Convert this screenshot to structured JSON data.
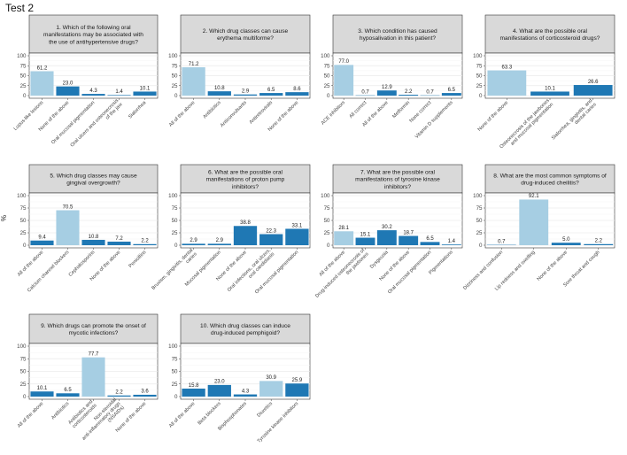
{
  "page": {
    "title": "Test 2",
    "y_axis_label": "%"
  },
  "colors": {
    "light_bar": "#a6cee3",
    "dark_bar": "#1f78b4",
    "strip_bg": "#d9d9d9",
    "panel_border": "#333333",
    "grid": "#ebebeb"
  },
  "chart_data": [
    {
      "type": "bar",
      "title": "1. Which of the following oral manifestations may be associated with the use of antihypertensive drugs?",
      "title_lines": [
        "1. Which of the following oral",
        "manifestations may be associated with",
        "the use of antihypertensive drugs?"
      ],
      "categories": [
        "Lupus-like lesions",
        "None of the above",
        "Oral mucosal pigmentation",
        "Oral ulcers and osteonecrosis of the jaw",
        "Sialorrhea"
      ],
      "category_lines": [
        [
          "Lupus-like lesions"
        ],
        [
          "None of the above"
        ],
        [
          "Oral mucosal pigmentation"
        ],
        [
          "Oral ulcers and osteonecrosis",
          "of the jaw"
        ],
        [
          "Sialorrhea"
        ]
      ],
      "values": [
        61.2,
        23.0,
        4.3,
        1.4,
        10.1
      ],
      "value_labels": [
        "61.2",
        "23.0",
        "4.3",
        "1.4",
        "10.1"
      ],
      "correct": [
        true,
        false,
        false,
        false,
        false
      ],
      "ylim": [
        0,
        100
      ],
      "yticks": [
        "0",
        "25",
        "50",
        "75",
        "100"
      ]
    },
    {
      "type": "bar",
      "title": "2. Which drug classes can cause erythema multiforme?",
      "title_lines": [
        "2. Which drug classes can cause",
        "erythema multiforme?"
      ],
      "categories": [
        "All of the above",
        "Antibiotics",
        "Anticonvulsants",
        "Antiretrovirals",
        "None of the above"
      ],
      "category_lines": [
        [
          "All of the above"
        ],
        [
          "Antibiotics"
        ],
        [
          "Anticonvulsants"
        ],
        [
          "Antiretrovirals"
        ],
        [
          "None of the above"
        ]
      ],
      "values": [
        71.2,
        10.8,
        2.9,
        6.5,
        8.6
      ],
      "value_labels": [
        "71.2",
        "10.8",
        "2.9",
        "6.5",
        "8.6"
      ],
      "correct": [
        true,
        false,
        false,
        false,
        false
      ],
      "ylim": [
        0,
        100
      ],
      "yticks": [
        "0",
        "25",
        "50",
        "75",
        "100"
      ]
    },
    {
      "type": "bar",
      "title": "3. Which condition has caused hyposalivation in this patient?",
      "title_lines": [
        "3. Which condition has caused",
        "hyposalivation in this patient?"
      ],
      "categories": [
        "ACE inhibitors",
        "All correct",
        "All of the above",
        "Metformin",
        "None correct",
        "Vitamin D supplements"
      ],
      "category_lines": [
        [
          "ACE inhibitors"
        ],
        [
          "All correct"
        ],
        [
          "All of the above"
        ],
        [
          "Metformin"
        ],
        [
          "None correct"
        ],
        [
          "Vitamin D supplements"
        ]
      ],
      "values": [
        77.0,
        0.7,
        12.9,
        2.2,
        0.7,
        6.5
      ],
      "value_labels": [
        "77.0",
        "0.7",
        "12.9",
        "2.2",
        "0.7",
        "6.5"
      ],
      "correct": [
        true,
        false,
        false,
        false,
        false,
        false
      ],
      "ylim": [
        0,
        100
      ],
      "yticks": [
        "0",
        "25",
        "50",
        "75",
        "100"
      ]
    },
    {
      "type": "bar",
      "title": "4. What are the possible oral manifestations of corticosteroid drugs?",
      "title_lines": [
        "4. What are the possible oral",
        "manifestations of corticosteroid drugs?"
      ],
      "categories": [
        "None of the above",
        "Osteonecrosis of the jawbones and mucosal pigmentation",
        "Sialorrhea, gingivitis, and dental caries"
      ],
      "category_lines": [
        [
          "None of the above"
        ],
        [
          "Osteonecrosis of the jawbones",
          "and mucosal pigmentation"
        ],
        [
          "Sialorrhea, gingivitis, and",
          "dental caries"
        ]
      ],
      "values": [
        63.3,
        10.1,
        26.6
      ],
      "value_labels": [
        "63.3",
        "10.1",
        "26.6"
      ],
      "correct": [
        true,
        false,
        false
      ],
      "ylim": [
        0,
        100
      ],
      "yticks": [
        "0",
        "25",
        "50",
        "75",
        "100"
      ]
    },
    {
      "type": "bar",
      "title": "5. Which drug classes may cause gingival overgrowth?",
      "title_lines": [
        "5. Which drug classes may cause",
        "gingival overgrowth?"
      ],
      "categories": [
        "All of the above",
        "Calcium channel blockers",
        "Cephalosporins",
        "None of the above",
        "Penicillins"
      ],
      "category_lines": [
        [
          "All of the above"
        ],
        [
          "Calcium channel blockers"
        ],
        [
          "Cephalosporins"
        ],
        [
          "None of the above"
        ],
        [
          "Penicillins"
        ]
      ],
      "values": [
        9.4,
        70.5,
        10.8,
        7.2,
        2.2
      ],
      "value_labels": [
        "9.4",
        "70.5",
        "10.8",
        "7.2",
        "2.2"
      ],
      "correct": [
        false,
        true,
        false,
        false,
        false
      ],
      "ylim": [
        0,
        100
      ],
      "yticks": [
        "0",
        "25",
        "50",
        "75",
        "100"
      ]
    },
    {
      "type": "bar",
      "title": "6. What are the possible oral manifestations of proton pump inhibitors?",
      "title_lines": [
        "6. What are the possible oral",
        "manifestations of proton pump",
        "inhibitors?"
      ],
      "categories": [
        "Bruxism, gingivitis, dental caries",
        "Mucosal pigmentation",
        "None of the above",
        "Oral infections, oral ulcers, oral candidiasis",
        "Oral mucosal pigmentation"
      ],
      "category_lines": [
        [
          "Bruxism, gingivitis, dental",
          "caries"
        ],
        [
          "Mucosal pigmentation"
        ],
        [
          "None of the above"
        ],
        [
          "Oral infections, oral ulcers,",
          "oral candidiasis"
        ],
        [
          "Oral mucosal pigmentation"
        ]
      ],
      "values": [
        2.9,
        2.9,
        38.8,
        22.3,
        33.1
      ],
      "value_labels": [
        "2.9",
        "2.9",
        "38.8",
        "22.3",
        "33.1"
      ],
      "correct": [
        false,
        false,
        false,
        false,
        false
      ],
      "ylim": [
        0,
        100
      ],
      "yticks": [
        "0",
        "25",
        "50",
        "75",
        "100"
      ]
    },
    {
      "type": "bar",
      "title": "7. What are the possible oral manifestations of tyrosine kinase inhibitors?",
      "title_lines": [
        "7. What are the possible oral",
        "manifestations of tyrosine kinase",
        "inhibitors?"
      ],
      "categories": [
        "All of the above",
        "Drug-induced osteonecrosis of the jawbones",
        "Dysgeusia",
        "None of the above",
        "Oral mucosal pigmentation",
        "Pigmentations"
      ],
      "category_lines": [
        [
          "All of the above"
        ],
        [
          "Drug-induced osteonecrosis of",
          "the jawbones"
        ],
        [
          "Dysgeusia"
        ],
        [
          "None of the above"
        ],
        [
          "Oral mucosal pigmentation"
        ],
        [
          "Pigmentations"
        ]
      ],
      "values": [
        28.1,
        15.1,
        30.2,
        18.7,
        6.5,
        1.4
      ],
      "value_labels": [
        "28.1",
        "15.1",
        "30.2",
        "18.7",
        "6.5",
        "1.4"
      ],
      "correct": [
        true,
        false,
        false,
        false,
        false,
        false
      ],
      "ylim": [
        0,
        100
      ],
      "yticks": [
        "0",
        "25",
        "50",
        "75",
        "100"
      ]
    },
    {
      "type": "bar",
      "title": "8. What are the most common symptoms of drug-induced cheilitis?",
      "title_lines": [
        "8. What are the most common symptoms of",
        "drug-induced cheilitis?"
      ],
      "categories": [
        "Dizziness and confusion",
        "Lip redness and swelling",
        "None of the above",
        "Sore throat and cough"
      ],
      "category_lines": [
        [
          "Dizziness and confusion"
        ],
        [
          "Lip redness and swelling"
        ],
        [
          "None of the above"
        ],
        [
          "Sore throat and cough"
        ]
      ],
      "values": [
        0.7,
        92.1,
        5.0,
        2.2
      ],
      "value_labels": [
        "0.7",
        "92.1",
        "5.0",
        "2.2"
      ],
      "correct": [
        false,
        true,
        false,
        false
      ],
      "ylim": [
        0,
        100
      ],
      "yticks": [
        "0",
        "25",
        "50",
        "75",
        "100"
      ]
    },
    {
      "type": "bar",
      "title": "9. Which drugs can promote the onset of mycotic infections?",
      "title_lines": [
        "9. Which drugs can promote the onset of",
        "mycotic infections?"
      ],
      "categories": [
        "All of the above",
        "Antibiotics",
        "Antibiotics and corticosteroids",
        "Non-steroidal anti-inflammatory drugs (NSAIDs)",
        "None of the above"
      ],
      "category_lines": [
        [
          "All of the above"
        ],
        [
          "Antibiotics"
        ],
        [
          "Antibiotics and",
          "corticosteroids"
        ],
        [
          "Non-steroidal",
          "anti-inflammatory drugs",
          "(NSAIDs)"
        ],
        [
          "None of the above"
        ]
      ],
      "values": [
        10.1,
        6.5,
        77.7,
        2.2,
        3.6
      ],
      "value_labels": [
        "10.1",
        "6.5",
        "77.7",
        "2.2",
        "3.6"
      ],
      "correct": [
        false,
        false,
        true,
        false,
        false
      ],
      "ylim": [
        0,
        100
      ],
      "yticks": [
        "0",
        "25",
        "50",
        "75",
        "100"
      ]
    },
    {
      "type": "bar",
      "title": "10. Which drug classes can induce drug-induced pemphigoid?",
      "title_lines": [
        "10. Which drug classes can induce",
        "drug-induced pemphigoid?"
      ],
      "categories": [
        "All of the above",
        "Beta blockers",
        "Bisphosphonates",
        "Diuretics",
        "Tyrosine kinase inhibitors"
      ],
      "category_lines": [
        [
          "All of the above"
        ],
        [
          "Beta blockers"
        ],
        [
          "Bisphosphonates"
        ],
        [
          "Diuretics"
        ],
        [
          "Tyrosine kinase inhibitors"
        ]
      ],
      "values": [
        15.8,
        23.0,
        4.3,
        30.9,
        25.9
      ],
      "value_labels": [
        "15.8",
        "23.0",
        "4.3",
        "30.9",
        "25.9"
      ],
      "correct": [
        false,
        false,
        false,
        true,
        false
      ],
      "ylim": [
        0,
        100
      ],
      "yticks": [
        "0",
        "25",
        "50",
        "75",
        "100"
      ]
    }
  ]
}
